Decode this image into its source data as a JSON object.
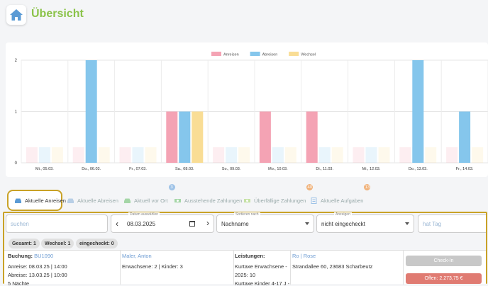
{
  "header": {
    "title": "Übersicht",
    "home_icon": "house-icon"
  },
  "chart_data": {
    "type": "bar",
    "categories": [
      "Mi., 05.03.",
      "Do., 06.03.",
      "Fr., 07.03.",
      "Sa., 08.03.",
      "So., 09.03.",
      "Mo., 10.03.",
      "Di., 11.03.",
      "Mi., 12.03.",
      "Do., 13.03.",
      "Fr., 14.03."
    ],
    "series": [
      {
        "name": "Anreisen",
        "color": "#f4a3b4",
        "values": [
          0,
          0,
          0,
          1,
          0,
          1,
          1,
          0,
          0,
          0
        ]
      },
      {
        "name": "Abreisen",
        "color": "#85c6ec",
        "values": [
          0,
          2,
          0,
          1,
          0,
          0,
          0,
          0,
          2,
          1
        ]
      },
      {
        "name": "Wechsel",
        "color": "#f9dd95",
        "values": [
          0,
          0,
          0,
          1,
          0,
          0,
          0,
          0,
          0,
          0
        ]
      }
    ],
    "yticks": [
      "0",
      "1",
      "2"
    ],
    "ylim": [
      0,
      2
    ],
    "legend": "top-center"
  },
  "tabs": [
    {
      "label": "Aktuelle Anreisen",
      "icon": "car-icon",
      "active": true
    },
    {
      "label": "Aktuelle Abreisen",
      "icon": "car-icon"
    },
    {
      "label": "Aktuell vor Ort",
      "icon": "car-icon",
      "badge": "3"
    },
    {
      "label": "Ausstehende Zahlungen",
      "icon": "money-icon"
    },
    {
      "label": "Überfällige Zahlungen",
      "icon": "money-icon",
      "badge": "40"
    },
    {
      "label": "Aktuelle Aufgaben",
      "icon": "clipboard-icon",
      "badge": "13"
    }
  ],
  "filters": {
    "search_placeholder": "suchen",
    "date_label": "Datum auswählen",
    "date_value": "08.03.2025",
    "sort_label": "Sortieren nach",
    "sort_value": "Nachname",
    "status_label": "Anzeigen",
    "status_value": "nicht eingecheckt",
    "day_placeholder": "hat Tag"
  },
  "chips": {
    "total": "Gesamt: 1",
    "change": "Wechsel: 1",
    "checked_in": "eingecheckt: 0"
  },
  "booking": {
    "label": "Buchung:",
    "id": "BU1090",
    "arrival": "Anreise: 08.03.25 | 14:00",
    "departure": "Abreise: 13.03.25 | 10:00",
    "nights": "5 Nächte",
    "guest_name": "Maler, Anton",
    "guests": "Erwachsene: 2 | Kinder: 3",
    "services_label": "Leistungen:",
    "service_1": "Kurtaxe Erwachsene -",
    "service_2": "2025: 10",
    "service_3": "Kurtaxe Kinder 4-17 J -",
    "property": "Ro | Rose",
    "address": "Strandallee 60, 23683 Scharbeutz",
    "checkin_label": "Check-In",
    "open_amount": "Offen: 2.273,75 €"
  }
}
